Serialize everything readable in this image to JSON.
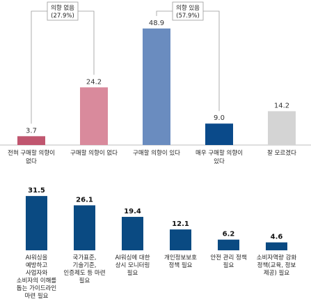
{
  "chart_data": [
    {
      "type": "bar",
      "categories": [
        "전혀 구매할 의향이 없다",
        "구매할 의향이 없다",
        "구매할 의향이 있다",
        "매우 구매할 의향이 있다",
        "잘 모르겠다"
      ],
      "category_lines": [
        [
          "전혀 구매할 의향이",
          "없다"
        ],
        [
          "구매할 의향이 없다"
        ],
        [
          "구매할 의향이 있다"
        ],
        [
          "매우 구매할 의향이",
          "있다"
        ],
        [
          "잘 모르겠다"
        ]
      ],
      "values": [
        3.7,
        24.2,
        48.9,
        9.0,
        14.2
      ],
      "value_labels": [
        "3.7",
        "24.2",
        "48.9",
        "9.0",
        "14.2"
      ],
      "bar_colors": [
        "#c0566f",
        "#d98a9c",
        "#6a8cbf",
        "#0a4a8a",
        "#d4d4d4"
      ],
      "ylim": [
        0,
        55
      ],
      "groups": [
        {
          "label_lines": [
            "의향 없음",
            "(27.9%)"
          ],
          "span": [
            0,
            1
          ]
        },
        {
          "label_lines": [
            "의향 있음",
            "(57.9%)"
          ],
          "span": [
            2,
            3
          ]
        }
      ]
    },
    {
      "type": "bar",
      "categories": [
        "AI워싱을 예방하고 사업자와 소비자의 이해를 돕는 가이드라인 마련 필요",
        "국가표준, 기술기준, 인증제도 등 마련 필요",
        "AI워싱에 대한 상시 모니터링 필요",
        "개인정보보호 정책 필요",
        "안전 관리 정책 필요",
        "소비자역량 강화 정책(교육, 정보 제공) 필요"
      ],
      "category_lines": [
        [
          "AI워싱을",
          "예방하고",
          "사업자와",
          "소비자의 이해를",
          "돕는 가이드라인",
          "마련 필요"
        ],
        [
          "국가표준,",
          "기술기준,",
          "인증제도 등 마련",
          "필요"
        ],
        [
          "AI워싱에 대한",
          "상시 모니터링",
          "필요"
        ],
        [
          "개인정보보호",
          "정책 필요"
        ],
        [
          "안전 관리 정책",
          "필요"
        ],
        [
          "소비자역량 강화",
          "정책(교육, 정보",
          "제공) 필요"
        ]
      ],
      "values": [
        31.5,
        26.1,
        19.4,
        12.1,
        6.2,
        4.6
      ],
      "value_labels": [
        "31.5",
        "26.1",
        "19.4",
        "12.1",
        "6.2",
        "4.6"
      ],
      "bar_color": "#0a4a82",
      "ylim": [
        0,
        36
      ]
    }
  ]
}
